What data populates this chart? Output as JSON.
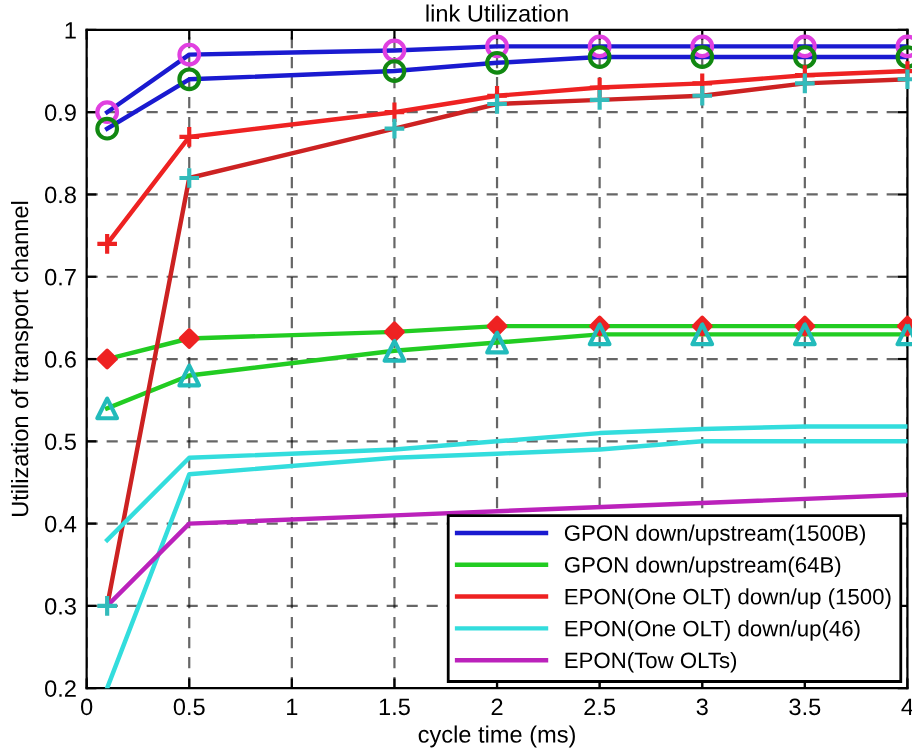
{
  "chart_data": {
    "type": "line",
    "title": "link Utilization",
    "xlabel": "cycle time (ms)",
    "ylabel": "Utilization of transport channel",
    "xlim": [
      0,
      4
    ],
    "ylim": [
      0.2,
      1
    ],
    "xticks": [
      0,
      0.5,
      1,
      1.5,
      2,
      2.5,
      3,
      3.5,
      4
    ],
    "yticks": [
      0.2,
      0.3,
      0.4,
      0.5,
      0.6,
      0.7,
      0.8,
      0.9,
      1
    ],
    "grid": true,
    "legend": "bottom right",
    "line_style": "solid",
    "x": [
      0.1,
      0.5,
      1.5,
      2,
      2.5,
      3,
      3.5,
      4
    ],
    "series": [
      {
        "name": "GPON down/upstream(1500B)",
        "color": "#1a1ad0",
        "marker": "circle",
        "colors": [
          "#e040e0",
          "#e040e0",
          "#e040e0",
          "#e040e0",
          "#e040e0",
          "#e040e0",
          "#e040e0",
          "#e040e0"
        ],
        "values": [
          0.9,
          0.97,
          0.975,
          0.98,
          0.98,
          0.98,
          0.98,
          0.98
        ]
      },
      {
        "color": "#1a1ad0",
        "marker": "circle",
        "colors": [
          "#118811",
          "#118811",
          "#118811",
          "#118811",
          "#118811",
          "#118811",
          "#118811",
          "#118811"
        ],
        "values": [
          0.88,
          0.94,
          0.95,
          0.96,
          0.967,
          0.967,
          0.967,
          0.967
        ]
      },
      {
        "name": "GPON down/upstream(64B)",
        "color": "#22cc22",
        "marker": "diamond",
        "colors": [
          "#ee2222",
          "#ee2222",
          "#ee2222",
          "#ee2222",
          "#ee2222",
          "#ee2222",
          "#ee2222",
          "#ee2222"
        ],
        "values": [
          0.6,
          0.625,
          0.633,
          0.64,
          0.64,
          0.64,
          0.64,
          0.64
        ]
      },
      {
        "color": "#22cc22",
        "marker": "triangle",
        "colors": [
          "#22bbbb",
          "#22bbbb",
          "#22bbbb",
          "#22bbbb",
          "#22bbbb",
          "#22bbbb",
          "#22bbbb",
          "#22bbbb"
        ],
        "values": [
          0.54,
          0.58,
          0.61,
          0.62,
          0.63,
          0.63,
          0.63,
          0.63
        ]
      },
      {
        "name": "EPON(One OLT) down/up (1500)",
        "color": "#ee2222",
        "marker": "cross",
        "values": [
          0.74,
          0.87,
          0.9,
          0.92,
          0.93,
          0.935,
          0.945,
          0.95
        ]
      },
      {
        "color": "#cc2222",
        "marker": "cross",
        "colors": [
          "#33bbbb",
          "#33bbbb",
          "#33bbbb",
          "#33bbbb",
          "#33bbbb",
          "#33bbbb",
          "#33bbbb",
          "#33bbbb"
        ],
        "values": [
          0.3,
          0.82,
          0.88,
          0.91,
          0.915,
          0.92,
          0.935,
          0.94
        ]
      },
      {
        "name": "EPON(One OLT) down/up(46)",
        "color": "#33dddd",
        "values": [
          0.38,
          0.48,
          0.49,
          0.5,
          0.51,
          0.515,
          0.518,
          0.518
        ]
      },
      {
        "color": "#33dddd",
        "values": [
          0.2,
          0.46,
          0.48,
          0.485,
          0.49,
          0.5,
          0.5,
          0.5
        ]
      },
      {
        "name": "EPON(Tow OLTs)",
        "color": "#bb22bb",
        "x": [
          0.1,
          0.5,
          1.5,
          4
        ],
        "values": [
          0.3,
          0.4,
          0.41,
          0.435
        ]
      }
    ]
  }
}
